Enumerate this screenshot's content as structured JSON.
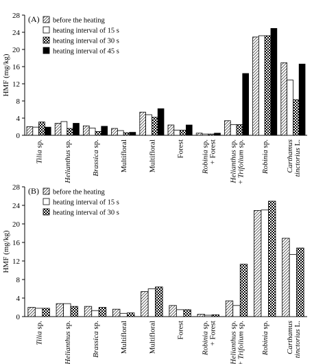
{
  "chart_data": [
    {
      "type": "bar",
      "panel_label": "(A)",
      "ylabel": "HMF (mg/kg)",
      "xlabel": "",
      "ylim": [
        0,
        28
      ],
      "yticks": [
        0,
        4,
        8,
        12,
        16,
        20,
        24,
        28
      ],
      "legend_position": "top-left",
      "categories": [
        [
          {
            "t": "Tilia",
            "i": true
          },
          {
            "t": " sp.",
            "i": false
          }
        ],
        [
          {
            "t": "Helianthus",
            "i": true
          },
          {
            "t": " sp.",
            "i": false
          }
        ],
        [
          {
            "t": "Brassica",
            "i": true
          },
          {
            "t": " sp.",
            "i": false
          }
        ],
        [
          {
            "t": "Multifloral",
            "i": false
          }
        ],
        [
          {
            "t": "Multifloral",
            "i": false
          }
        ],
        [
          {
            "t": "Forest",
            "i": false
          }
        ],
        [
          {
            "t": "Robinia",
            "i": true
          },
          {
            "t": " sp.",
            "i": false
          },
          {
            "br": true
          },
          {
            "t": "+ Forest",
            "i": false
          }
        ],
        [
          {
            "t": "Helianthus",
            "i": true
          },
          {
            "t": " sp.",
            "i": false
          },
          {
            "br": true
          },
          {
            "t": "+ ",
            "i": false
          },
          {
            "t": "Trifolium",
            "i": true
          },
          {
            "t": " sp.",
            "i": false
          }
        ],
        [
          {
            "t": "Robinia",
            "i": true
          },
          {
            "t": " sp.",
            "i": false
          }
        ],
        [
          {
            "t": "Carthamus",
            "i": true
          },
          {
            "br": true
          },
          {
            "t": "tinctorius",
            "i": true
          },
          {
            "t": " L.",
            "i": false
          }
        ]
      ],
      "series": [
        {
          "name": "before the heating",
          "pattern": "hatch",
          "values": [
            2.0,
            2.8,
            2.2,
            1.6,
            5.4,
            2.4,
            0.5,
            3.4,
            22.9,
            16.9
          ]
        },
        {
          "name": "heating interval of 15 s",
          "pattern": "white",
          "values": [
            1.9,
            3.2,
            1.7,
            1.1,
            4.8,
            1.2,
            0.3,
            2.5,
            23.2,
            12.9
          ]
        },
        {
          "name": "heating interval of 30 s",
          "pattern": "check",
          "values": [
            3.1,
            1.6,
            0.9,
            0.6,
            4.2,
            1.2,
            0.3,
            2.5,
            23.2,
            8.3
          ]
        },
        {
          "name": "heating interval of 45 s",
          "pattern": "black",
          "values": [
            1.9,
            2.8,
            2.1,
            0.7,
            6.2,
            2.4,
            0.5,
            14.4,
            24.9,
            16.6
          ]
        }
      ]
    },
    {
      "type": "bar",
      "panel_label": "(B)",
      "ylabel": "HMF (mg/kg)",
      "xlabel": "",
      "ylim": [
        0,
        28
      ],
      "yticks": [
        0,
        4,
        8,
        12,
        16,
        20,
        24,
        28
      ],
      "legend_position": "top-left",
      "categories": [
        [
          {
            "t": "Tilia",
            "i": true
          },
          {
            "t": " sp.",
            "i": false
          }
        ],
        [
          {
            "t": "Helianthus",
            "i": true
          },
          {
            "t": " sp.",
            "i": false
          }
        ],
        [
          {
            "t": "Brassica",
            "i": true
          },
          {
            "t": " sp.",
            "i": false
          }
        ],
        [
          {
            "t": "Multifloral",
            "i": false
          }
        ],
        [
          {
            "t": "Multifloral",
            "i": false
          }
        ],
        [
          {
            "t": "Forest",
            "i": false
          }
        ],
        [
          {
            "t": "Robinia",
            "i": true
          },
          {
            "t": " sp.",
            "i": false
          },
          {
            "br": true
          },
          {
            "t": "+ Forest",
            "i": false
          }
        ],
        [
          {
            "t": "Helianthus",
            "i": true
          },
          {
            "t": " sp.",
            "i": false
          },
          {
            "br": true
          },
          {
            "t": "+ ",
            "i": false
          },
          {
            "t": "Trifolium",
            "i": true
          },
          {
            "t": " sp.",
            "i": false
          }
        ],
        [
          {
            "t": "Robinia",
            "i": true
          },
          {
            "t": " sp.",
            "i": false
          }
        ],
        [
          {
            "t": "Carthamus",
            "i": true
          },
          {
            "br": true
          },
          {
            "t": "tinctorius",
            "i": true
          },
          {
            "t": " L.",
            "i": false
          }
        ]
      ],
      "series": [
        {
          "name": "before the heating",
          "pattern": "hatch",
          "values": [
            2.0,
            2.8,
            2.2,
            1.6,
            5.4,
            2.4,
            0.5,
            3.4,
            22.9,
            16.9
          ]
        },
        {
          "name": "heating interval of 15 s",
          "pattern": "white",
          "values": [
            1.8,
            2.8,
            1.3,
            0.7,
            6.0,
            1.5,
            0.3,
            2.4,
            23.0,
            13.4
          ]
        },
        {
          "name": "heating interval of 30 s",
          "pattern": "check",
          "values": [
            1.8,
            2.2,
            2.0,
            0.8,
            6.4,
            1.5,
            0.4,
            11.3,
            24.9,
            14.8
          ]
        }
      ]
    }
  ]
}
